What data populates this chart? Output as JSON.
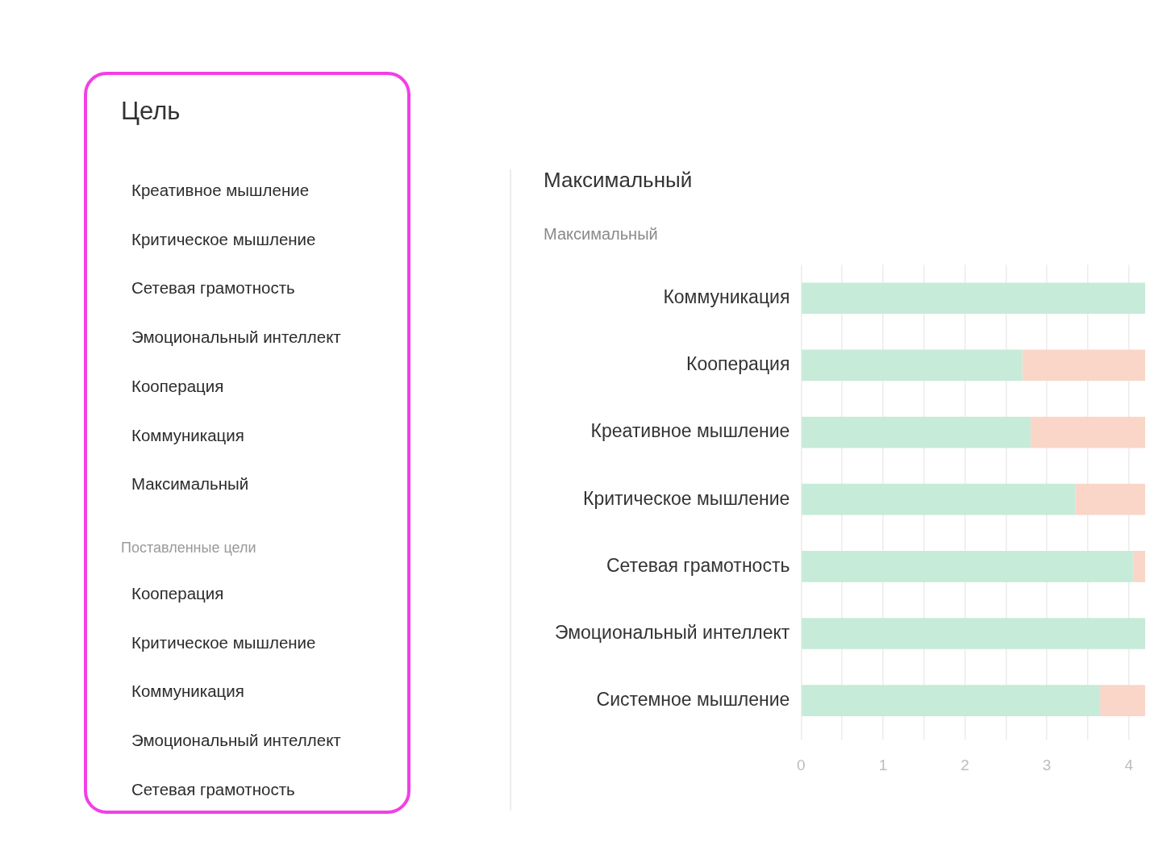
{
  "chart_data": [
    {
      "type": "other",
      "title": "Цель",
      "annotations": [
        "Креативное мышление",
        "Критическое мышление",
        "Сетевая грамотность",
        "Эмоциональный интеллект",
        "Кооперация",
        "Коммуникация",
        "Максимальный"
      ]
    },
    {
      "type": "other",
      "title": "Поставленные цели",
      "annotations": [
        "Кооперация",
        "Критическое мышление",
        "Коммуникация",
        "Эмоциональный интеллект",
        "Сетевая грамотность"
      ]
    },
    {
      "type": "bar",
      "title": "Максимальный",
      "subtitle": "Максимальный",
      "orientation": "horizontal",
      "stacked": true,
      "categories": [
        "Коммуникация",
        "Кооперация",
        "Креативное мышление",
        "Критическое мышление",
        "Сетевая грамотность",
        "Эмоциональный интеллект",
        "Системное мышление"
      ],
      "series": [
        {
          "color": "#c6ebd8",
          "values": [
            4.2,
            2.7,
            2.8,
            3.35,
            4.05,
            4.2,
            3.65
          ]
        },
        {
          "color": "#f9d6c8",
          "values": [
            null,
            1.5,
            1.4,
            0.85,
            0.15,
            null,
            0.55
          ]
        }
      ],
      "xlim": [
        0,
        4.2
      ],
      "xticks": [
        0,
        {
          "value": 0.5,
          "label": null
        },
        1,
        {
          "value": 1.5,
          "label": null
        },
        2,
        {
          "value": 2.5,
          "label": null
        },
        3,
        {
          "value": 3.5,
          "label": null
        },
        4
      ],
      "grid": "x"
    }
  ]
}
